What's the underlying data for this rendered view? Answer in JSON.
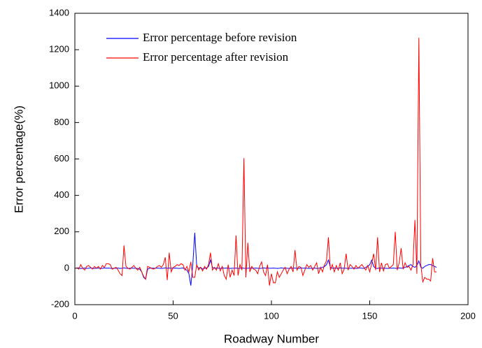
{
  "chart_data": {
    "type": "line",
    "xlabel": "Roadway Number",
    "ylabel": "Error percentage(%)",
    "xlim": [
      0,
      200
    ],
    "xticks": [
      0,
      50,
      100,
      150,
      200
    ],
    "ylim": [
      -200,
      1400
    ],
    "yticks": [
      -200,
      0,
      200,
      400,
      600,
      800,
      1000,
      1200,
      1400
    ],
    "legend": "upper left",
    "x": [
      1,
      2,
      3,
      4,
      5,
      6,
      7,
      8,
      9,
      10,
      11,
      12,
      13,
      14,
      15,
      16,
      17,
      18,
      19,
      20,
      21,
      22,
      23,
      24,
      25,
      26,
      27,
      28,
      29,
      30,
      31,
      32,
      33,
      34,
      35,
      36,
      37,
      38,
      39,
      40,
      41,
      42,
      43,
      44,
      45,
      46,
      47,
      48,
      49,
      50,
      51,
      52,
      53,
      54,
      55,
      56,
      57,
      58,
      59,
      60,
      61,
      62,
      63,
      64,
      65,
      66,
      67,
      68,
      69,
      70,
      71,
      72,
      73,
      74,
      75,
      76,
      77,
      78,
      79,
      80,
      81,
      82,
      83,
      84,
      85,
      86,
      87,
      88,
      89,
      90,
      91,
      92,
      93,
      94,
      95,
      96,
      97,
      98,
      99,
      100,
      101,
      102,
      103,
      104,
      105,
      106,
      107,
      108,
      109,
      110,
      111,
      112,
      113,
      114,
      115,
      116,
      117,
      118,
      119,
      120,
      121,
      122,
      123,
      124,
      125,
      126,
      127,
      128,
      129,
      130,
      131,
      132,
      133,
      134,
      135,
      136,
      137,
      138,
      139,
      140,
      141,
      142,
      143,
      144,
      145,
      146,
      147,
      148,
      149,
      150,
      151,
      152,
      153,
      154,
      155,
      156,
      157,
      158,
      159,
      160,
      161,
      162,
      163,
      164,
      165,
      166,
      167,
      168,
      169,
      170,
      171,
      172,
      173,
      174,
      175,
      176,
      177,
      178,
      179,
      180,
      181,
      182,
      183,
      184
    ],
    "series": [
      {
        "name": "Error percentage before revision",
        "color": "#0000ff",
        "values": [
          0,
          2,
          -2,
          0,
          1,
          -1,
          0,
          2,
          0,
          -1,
          0,
          1,
          0,
          -1,
          2,
          0,
          1,
          0,
          -1,
          0,
          0,
          1,
          -1,
          0,
          2,
          0,
          -1,
          0,
          1,
          0,
          0,
          -2,
          -5,
          -20,
          -50,
          -60,
          -5,
          0,
          1,
          0,
          0,
          1,
          0,
          -1,
          0,
          2,
          0,
          1,
          0,
          0,
          1,
          0,
          -1,
          0,
          2,
          -5,
          -10,
          -30,
          -95,
          20,
          195,
          10,
          0,
          5,
          -5,
          0,
          2,
          10,
          45,
          5,
          0,
          1,
          0,
          -1,
          2,
          0,
          1,
          0,
          -1,
          0,
          0,
          1,
          -1,
          0,
          2,
          0,
          -1,
          0,
          1,
          0,
          0,
          1,
          0,
          -1,
          0,
          2,
          0,
          1,
          0,
          0,
          1,
          0,
          -1,
          0,
          2,
          0,
          1,
          0,
          -1,
          0,
          0,
          1,
          0,
          -1,
          2,
          0,
          1,
          0,
          -1,
          0,
          0,
          1,
          -1,
          0,
          2,
          5,
          10,
          20,
          45,
          5,
          0,
          1,
          0,
          -1,
          2,
          0,
          1,
          0,
          -1,
          0,
          0,
          1,
          -1,
          0,
          2,
          0,
          -1,
          5,
          10,
          20,
          45,
          10,
          0,
          -1,
          2,
          0,
          1,
          0,
          -1,
          0,
          0,
          1,
          0,
          -1,
          2,
          0,
          1,
          5,
          10,
          15,
          20,
          10,
          5,
          15,
          40,
          5,
          0,
          10,
          15,
          20,
          20,
          15,
          10,
          5
        ]
      },
      {
        "name": "Error percentage after revision",
        "color": "#ff0000",
        "values": [
          5,
          -5,
          20,
          0,
          -10,
          10,
          15,
          5,
          -5,
          10,
          0,
          10,
          -5,
          15,
          5,
          25,
          25,
          20,
          -5,
          0,
          5,
          -10,
          -30,
          -40,
          125,
          10,
          0,
          -5,
          5,
          15,
          0,
          -10,
          5,
          -20,
          -45,
          -60,
          10,
          5,
          0,
          -5,
          0,
          10,
          15,
          5,
          20,
          60,
          -65,
          85,
          -20,
          5,
          10,
          20,
          15,
          25,
          20,
          -10,
          10,
          -20,
          35,
          -50,
          -50,
          20,
          -10,
          5,
          -15,
          10,
          -5,
          20,
          85,
          -10,
          5,
          -10,
          25,
          -15,
          10,
          -40,
          -60,
          20,
          -50,
          -10,
          -40,
          180,
          -40,
          20,
          -10,
          605,
          -50,
          140,
          -20,
          10,
          -5,
          -10,
          -30,
          10,
          35,
          -20,
          -40,
          20,
          -95,
          -30,
          -80,
          -80,
          -20,
          -50,
          -30,
          -10,
          5,
          -30,
          -5,
          10,
          -20,
          100,
          -10,
          10,
          5,
          -40,
          -10,
          20,
          5,
          15,
          -10,
          10,
          30,
          -30,
          5,
          -20,
          20,
          40,
          170,
          -10,
          20,
          -20,
          15,
          -10,
          30,
          -30,
          -5,
          80,
          -10,
          20,
          10,
          -5,
          15,
          0,
          10,
          20,
          5,
          -10,
          15,
          -20,
          25,
          80,
          -10,
          170,
          -20,
          30,
          -15,
          20,
          25,
          0,
          10,
          20,
          200,
          -10,
          30,
          110,
          -5,
          30,
          5,
          10,
          -10,
          20,
          265,
          -30,
          1265,
          20,
          -75,
          -50,
          -60,
          -60,
          -70,
          55,
          -20,
          -20
        ]
      }
    ]
  }
}
